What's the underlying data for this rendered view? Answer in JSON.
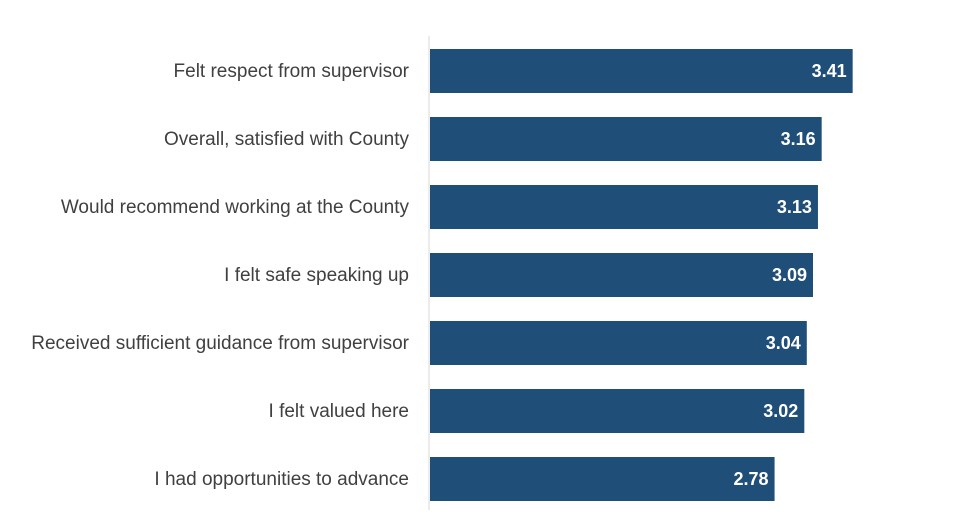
{
  "chart_data": {
    "type": "bar",
    "orientation": "horizontal",
    "categories": [
      "Felt respect from supervisor",
      "Overall, satisfied with County",
      "Would recommend working at the County",
      "I felt safe speaking up",
      "Received sufficient guidance from supervisor",
      "I felt valued here",
      "I had opportunities to advance"
    ],
    "values": [
      3.41,
      3.16,
      3.13,
      3.09,
      3.04,
      3.02,
      2.78
    ],
    "value_labels": [
      "3.41",
      "3.16",
      "3.13",
      "3.09",
      "3.04",
      "3.02",
      "2.78"
    ],
    "xlim": [
      0,
      3.8
    ],
    "bar_color": "#1f4e79",
    "grid": false,
    "legend": "none"
  }
}
